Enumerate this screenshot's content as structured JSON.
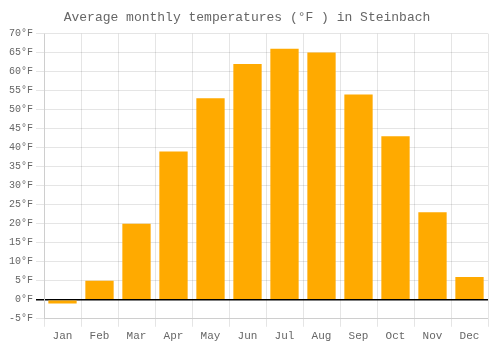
{
  "chart_data": {
    "type": "bar",
    "title": "Average monthly temperatures (°F ) in Steinbach",
    "categories": [
      "Jan",
      "Feb",
      "Mar",
      "Apr",
      "May",
      "Jun",
      "Jul",
      "Aug",
      "Sep",
      "Oct",
      "Nov",
      "Dec"
    ],
    "values": [
      -1,
      5,
      20,
      39,
      53,
      62,
      66,
      65,
      54,
      43,
      23,
      6
    ],
    "color": "#FFAA00",
    "ylim": [
      -5,
      70
    ],
    "yticks": [
      {
        "value": -5,
        "label": "-5°F"
      },
      {
        "value": 0,
        "label": "0°F"
      },
      {
        "value": 5,
        "label": "5°F"
      },
      {
        "value": 10,
        "label": "10°F"
      },
      {
        "value": 15,
        "label": "15°F"
      },
      {
        "value": 20,
        "label": "20°F"
      },
      {
        "value": 25,
        "label": "25°F"
      },
      {
        "value": 30,
        "label": "30°F"
      },
      {
        "value": 35,
        "label": "35°F"
      },
      {
        "value": 40,
        "label": "40°F"
      },
      {
        "value": 45,
        "label": "45°F"
      },
      {
        "value": 50,
        "label": "50°F"
      },
      {
        "value": 55,
        "label": "55°F"
      },
      {
        "value": 60,
        "label": "60°F"
      },
      {
        "value": 65,
        "label": "65°F"
      },
      {
        "value": 70,
        "label": "70°F"
      }
    ],
    "grid": true
  }
}
